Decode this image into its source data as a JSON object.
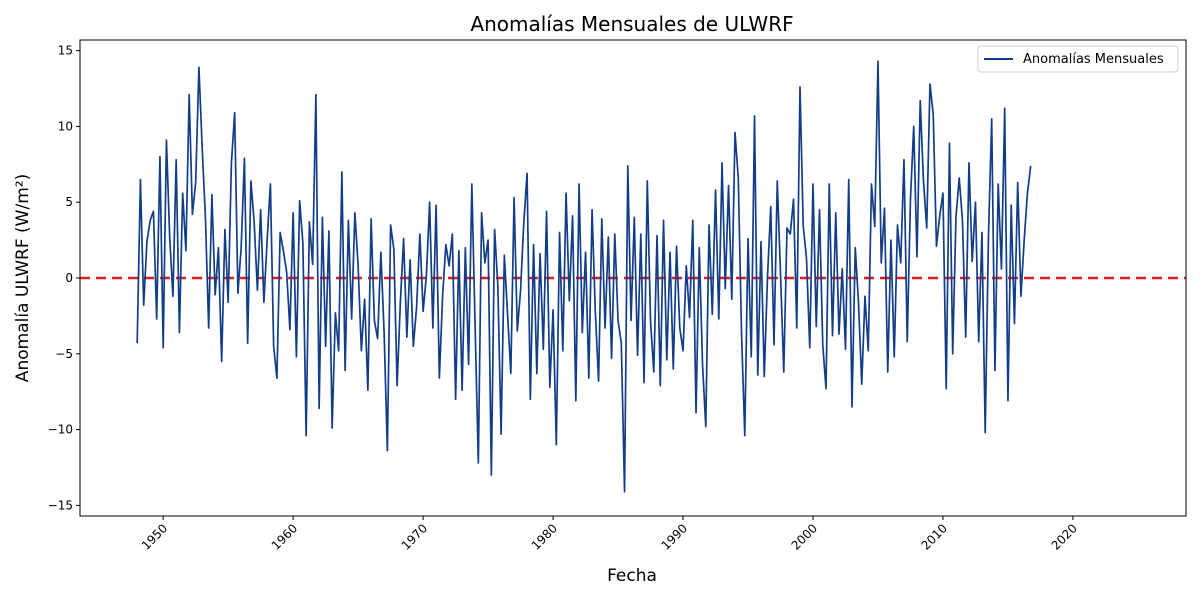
{
  "chart_data": {
    "type": "line",
    "title": "Anomalías Mensuales de ULWRF",
    "xlabel": "Fecha",
    "ylabel": "Anomalía ULWRF (W/m²)",
    "xlim": [
      1943.6,
      2028.7
    ],
    "ylim": [
      -15.7,
      15.7
    ],
    "x_ticks": [
      1950,
      1960,
      1970,
      1980,
      1990,
      2000,
      2010,
      2020
    ],
    "x_tick_labels": [
      "1950",
      "1960",
      "1970",
      "1980",
      "1990",
      "2000",
      "2010",
      "2020"
    ],
    "y_ticks": [
      -15,
      -10,
      -5,
      0,
      5,
      10,
      15
    ],
    "y_tick_labels": [
      "−15",
      "−10",
      "−5",
      "0",
      "5",
      "10",
      "15"
    ],
    "grid": false,
    "legend_position": "top-right",
    "reference_line": {
      "y": 0,
      "color": "#e41a1c",
      "style": "dashed"
    },
    "series": [
      {
        "name": "Anomalías Mensuales",
        "color": "#123d87",
        "x_start": 1948.0,
        "x_step": 0.25,
        "values": [
          -4.3,
          6.5,
          -1.8,
          2.4,
          3.8,
          4.4,
          -2.7,
          8.0,
          -4.6,
          9.1,
          2.7,
          -1.2,
          7.8,
          -3.6,
          5.6,
          1.8,
          12.1,
          4.2,
          6.3,
          13.9,
          8.6,
          4.0,
          -3.3,
          5.5,
          -1.1,
          2.0,
          -5.5,
          3.2,
          -1.6,
          7.6,
          10.9,
          -1.0,
          2.0,
          7.9,
          -4.3,
          6.4,
          3.7,
          -0.8,
          4.5,
          -1.6,
          2.5,
          6.2,
          -4.5,
          -6.6,
          3.0,
          1.8,
          0.4,
          -3.4,
          4.3,
          -5.2,
          5.1,
          2.3,
          -10.4,
          3.7,
          0.9,
          12.1,
          -8.6,
          4.0,
          -4.5,
          3.1,
          -9.9,
          -2.3,
          -4.8,
          7.0,
          -6.1,
          3.8,
          -2.7,
          4.3,
          0.8,
          -4.8,
          -1.4,
          -7.4,
          3.9,
          -2.8,
          -4.0,
          1.7,
          -3.6,
          -11.4,
          3.5,
          1.9,
          -7.1,
          -1.6,
          2.6,
          -3.9,
          1.2,
          -4.5,
          -1.9,
          2.9,
          -2.2,
          0.1,
          5.0,
          -3.3,
          4.8,
          -6.6,
          -1.2,
          2.2,
          0.8,
          2.9,
          -8.0,
          1.8,
          -7.4,
          2.0,
          -5.7,
          6.2,
          -3.1,
          -12.2,
          4.3,
          1.0,
          2.5,
          -13.0,
          3.2,
          -0.5,
          -10.3,
          1.5,
          -2.4,
          -6.3,
          5.3,
          -3.5,
          -0.8,
          3.7,
          6.9,
          -8.0,
          2.2,
          -6.3,
          1.6,
          -4.7,
          4.4,
          -7.2,
          -2.1,
          -11.0,
          3.0,
          -4.8,
          5.6,
          -1.5,
          4.1,
          -8.1,
          6.2,
          -3.6,
          1.7,
          -6.6,
          4.5,
          -2.2,
          -6.8,
          3.9,
          -3.3,
          2.7,
          -5.3,
          2.9,
          -2.8,
          -4.3,
          -14.1,
          7.4,
          -2.8,
          4.0,
          -5.1,
          2.9,
          -6.9,
          6.4,
          -2.9,
          -6.2,
          2.8,
          -7.1,
          3.8,
          -5.4,
          1.7,
          -6.0,
          2.1,
          -3.3,
          -4.8,
          0.8,
          -2.6,
          3.8,
          -8.9,
          2.0,
          -5.7,
          -9.8,
          3.5,
          -2.4,
          5.8,
          -2.7,
          7.6,
          -0.7,
          6.1,
          -1.4,
          9.6,
          6.6,
          -3.6,
          -10.4,
          2.6,
          -5.2,
          10.7,
          -6.4,
          2.4,
          -6.5,
          0.1,
          4.7,
          -4.4,
          6.4,
          0.3,
          -6.2,
          3.3,
          2.9,
          5.2,
          -3.3,
          12.6,
          3.4,
          1.3,
          -4.6,
          6.2,
          -3.2,
          4.5,
          -4.4,
          -7.3,
          6.2,
          -3.8,
          4.3,
          -3.7,
          0.6,
          -4.7,
          6.5,
          -8.5,
          2.0,
          -1.6,
          -7.0,
          -1.2,
          -4.8,
          6.2,
          3.4,
          14.3,
          1.0,
          4.6,
          -6.2,
          2.5,
          -5.2,
          3.5,
          1.0,
          7.8,
          -4.2,
          5.2,
          10.0,
          1.4,
          11.7,
          6.4,
          3.3,
          12.8,
          10.8,
          2.1,
          4.1,
          5.6,
          -7.3,
          8.9,
          -5.0,
          4.0,
          6.6,
          3.8,
          -3.9,
          7.6,
          1.1,
          5.0,
          -4.2,
          3.0,
          -10.2,
          2.7,
          10.5,
          -6.1,
          6.2,
          0.6,
          11.2,
          -8.1,
          4.8,
          -3.0,
          6.3,
          -1.2,
          2.5,
          5.6,
          7.4
        ]
      }
    ]
  }
}
